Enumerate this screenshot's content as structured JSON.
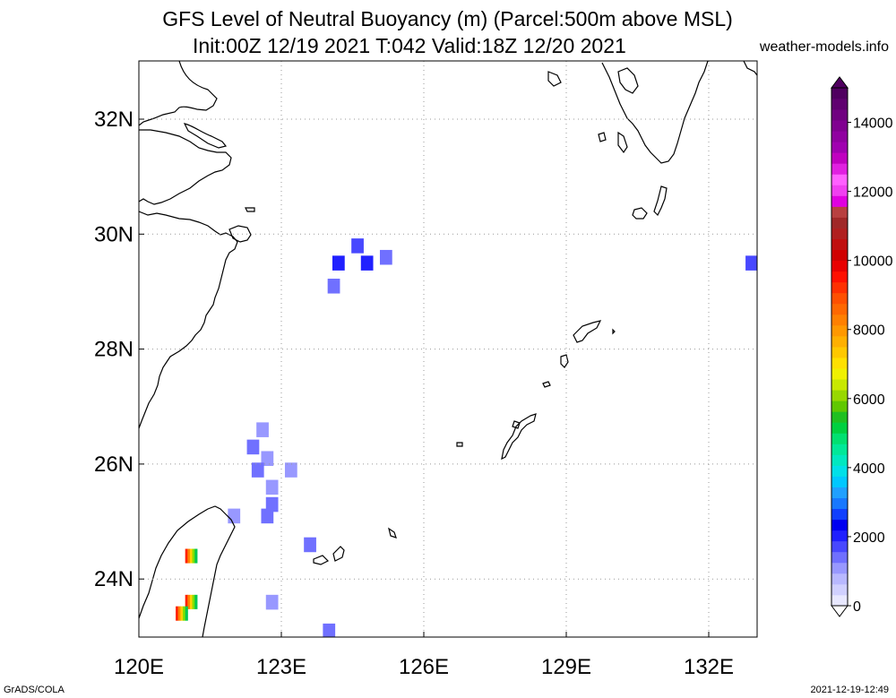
{
  "title": {
    "line1": "GFS Level of Neutral Buoyancy (m) (Parcel:500m above MSL)",
    "line2": "Init:00Z 12/19 2021 T:042 Valid:18Z 12/20 2021",
    "site": "weather-models.info"
  },
  "footer": {
    "left": "GrADS/COLA",
    "right": "2021-12-19-12:49"
  },
  "map": {
    "lon_range": [
      120,
      133
    ],
    "lat_range": [
      23,
      33
    ],
    "x_ticks": [
      {
        "value": 120,
        "label": "120E"
      },
      {
        "value": 123,
        "label": "123E"
      },
      {
        "value": 126,
        "label": "126E"
      },
      {
        "value": 129,
        "label": "129E"
      },
      {
        "value": 132,
        "label": "132E"
      }
    ],
    "y_ticks": [
      {
        "value": 32,
        "label": "32N"
      },
      {
        "value": 30,
        "label": "30N"
      },
      {
        "value": 28,
        "label": "28N"
      },
      {
        "value": 26,
        "label": "26N"
      },
      {
        "value": 24,
        "label": "24N"
      }
    ],
    "grid": "dotted"
  },
  "colorbar": {
    "labels": [
      "0",
      "2000",
      "4000",
      "6000",
      "8000",
      "10000",
      "12000",
      "14000"
    ],
    "range": [
      0,
      15000
    ],
    "colors": [
      "#e8e8ff",
      "#d0d0ff",
      "#b8b8ff",
      "#9898ff",
      "#7070ff",
      "#4848ff",
      "#2020ff",
      "#0000f0",
      "#1040ff",
      "#1878ff",
      "#20a0ff",
      "#00c8ff",
      "#00e0e8",
      "#00e8c0",
      "#00e898",
      "#00e070",
      "#00d040",
      "#20c020",
      "#60c800",
      "#98d800",
      "#c8e800",
      "#f0f000",
      "#ffe000",
      "#ffc800",
      "#ffb000",
      "#ff9800",
      "#ff8000",
      "#ff6800",
      "#ff5000",
      "#ff3000",
      "#ff1000",
      "#e80000",
      "#d00000",
      "#c01010",
      "#b02020",
      "#a02828",
      "#b84040",
      "#e000e0",
      "#f040f0",
      "#ff60ff",
      "#e020e0",
      "#c000c0",
      "#a000b0",
      "#9000a0",
      "#800090",
      "#700080",
      "#600070",
      "#500060"
    ]
  },
  "cells": [
    {
      "lon": 124.6,
      "lat": 29.8,
      "value": 1600
    },
    {
      "lon": 124.2,
      "lat": 29.5,
      "value": 1900
    },
    {
      "lon": 124.8,
      "lat": 29.5,
      "value": 2100
    },
    {
      "lon": 125.2,
      "lat": 29.6,
      "value": 1500
    },
    {
      "lon": 124.1,
      "lat": 29.1,
      "value": 1400
    },
    {
      "lon": 132.9,
      "lat": 29.5,
      "value": 1700
    },
    {
      "lon": 122.6,
      "lat": 26.6,
      "value": 1200
    },
    {
      "lon": 122.4,
      "lat": 26.3,
      "value": 1300
    },
    {
      "lon": 122.7,
      "lat": 26.1,
      "value": 1200
    },
    {
      "lon": 122.5,
      "lat": 25.9,
      "value": 1300
    },
    {
      "lon": 123.2,
      "lat": 25.9,
      "value": 1200
    },
    {
      "lon": 122.8,
      "lat": 25.6,
      "value": 1200
    },
    {
      "lon": 122.8,
      "lat": 25.3,
      "value": 1300
    },
    {
      "lon": 122.0,
      "lat": 25.1,
      "value": 1100
    },
    {
      "lon": 122.7,
      "lat": 25.1,
      "value": 1300
    },
    {
      "lon": 123.6,
      "lat": 24.6,
      "value": 1300
    },
    {
      "lon": 122.8,
      "lat": 23.6,
      "value": 1200
    },
    {
      "lon": 124.0,
      "lat": 23.1,
      "value": 1400
    },
    {
      "lon": 121.1,
      "lat": 24.4,
      "value": 7000
    },
    {
      "lon": 121.1,
      "lat": 23.6,
      "value": 7000
    },
    {
      "lon": 120.9,
      "lat": 23.4,
      "value": 9000
    }
  ]
}
